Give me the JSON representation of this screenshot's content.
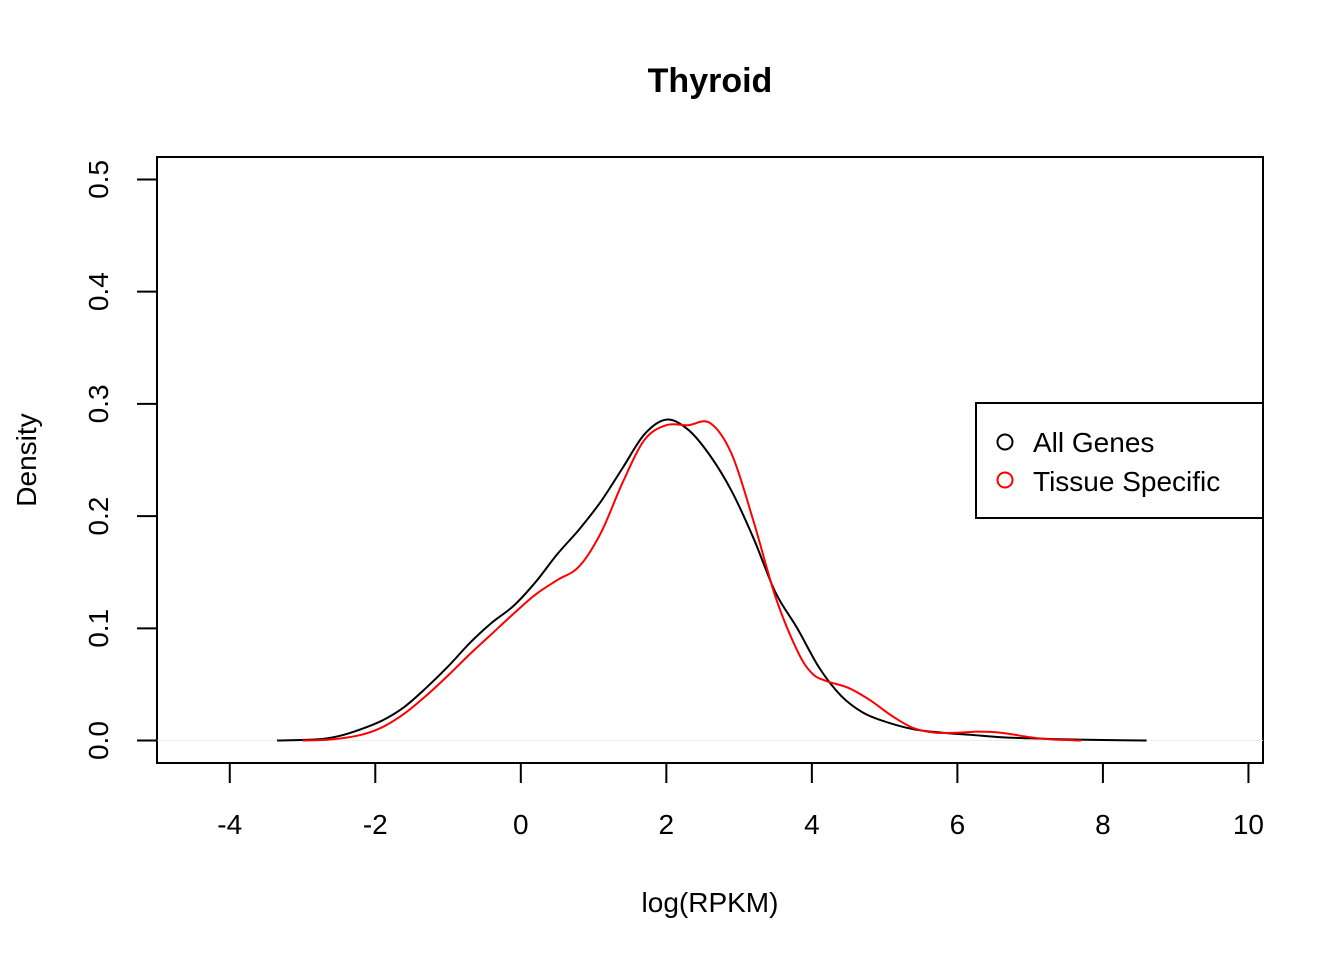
{
  "chart_data": {
    "type": "line",
    "title": "Thyroid",
    "xlabel": "log(RPKM)",
    "ylabel": "Density",
    "xlim": [
      -5,
      10.2
    ],
    "ylim": [
      -0.02,
      0.52
    ],
    "xticks": [
      -4,
      -2,
      0,
      2,
      4,
      6,
      8,
      10
    ],
    "xtick_labels": [
      "-4",
      "-2",
      "0",
      "2",
      "4",
      "6",
      "8",
      "10"
    ],
    "yticks": [
      0.0,
      0.1,
      0.2,
      0.3,
      0.4,
      0.5
    ],
    "ytick_labels": [
      "0.0",
      "0.1",
      "0.2",
      "0.3",
      "0.4",
      "0.5"
    ],
    "grid": false,
    "legend_position": "right",
    "series": [
      {
        "name": "All Genes",
        "color": "#000000",
        "x": [
          -3.35,
          -2.8,
          -2.5,
          -2.2,
          -1.9,
          -1.6,
          -1.3,
          -1.0,
          -0.7,
          -0.4,
          -0.1,
          0.2,
          0.5,
          0.8,
          1.1,
          1.4,
          1.7,
          2.0,
          2.3,
          2.6,
          2.9,
          3.2,
          3.5,
          3.8,
          4.1,
          4.4,
          4.7,
          5.0,
          5.4,
          5.8,
          6.2,
          6.6,
          7.0,
          7.5,
          8.0,
          8.6
        ],
        "values": [
          0.0,
          0.001,
          0.004,
          0.01,
          0.018,
          0.03,
          0.047,
          0.066,
          0.087,
          0.105,
          0.12,
          0.141,
          0.166,
          0.188,
          0.213,
          0.243,
          0.273,
          0.286,
          0.277,
          0.254,
          0.222,
          0.18,
          0.132,
          0.1,
          0.065,
          0.04,
          0.025,
          0.017,
          0.01,
          0.007,
          0.005,
          0.003,
          0.002,
          0.001,
          0.0005,
          0.0
        ]
      },
      {
        "name": "Tissue Specific",
        "color": "#ff0000",
        "x": [
          -3.0,
          -2.6,
          -2.2,
          -1.9,
          -1.6,
          -1.3,
          -1.0,
          -0.7,
          -0.4,
          -0.1,
          0.2,
          0.5,
          0.8,
          1.1,
          1.4,
          1.7,
          2.0,
          2.3,
          2.6,
          2.9,
          3.2,
          3.5,
          3.8,
          4.0,
          4.2,
          4.5,
          4.8,
          5.1,
          5.4,
          5.7,
          6.0,
          6.3,
          6.6,
          7.0,
          7.3,
          7.7
        ],
        "values": [
          0.0,
          0.001,
          0.005,
          0.012,
          0.024,
          0.04,
          0.058,
          0.077,
          0.095,
          0.113,
          0.13,
          0.143,
          0.155,
          0.185,
          0.23,
          0.268,
          0.281,
          0.281,
          0.283,
          0.255,
          0.195,
          0.128,
          0.08,
          0.06,
          0.053,
          0.047,
          0.036,
          0.022,
          0.011,
          0.007,
          0.007,
          0.008,
          0.007,
          0.003,
          0.001,
          0.0
        ]
      }
    ]
  }
}
